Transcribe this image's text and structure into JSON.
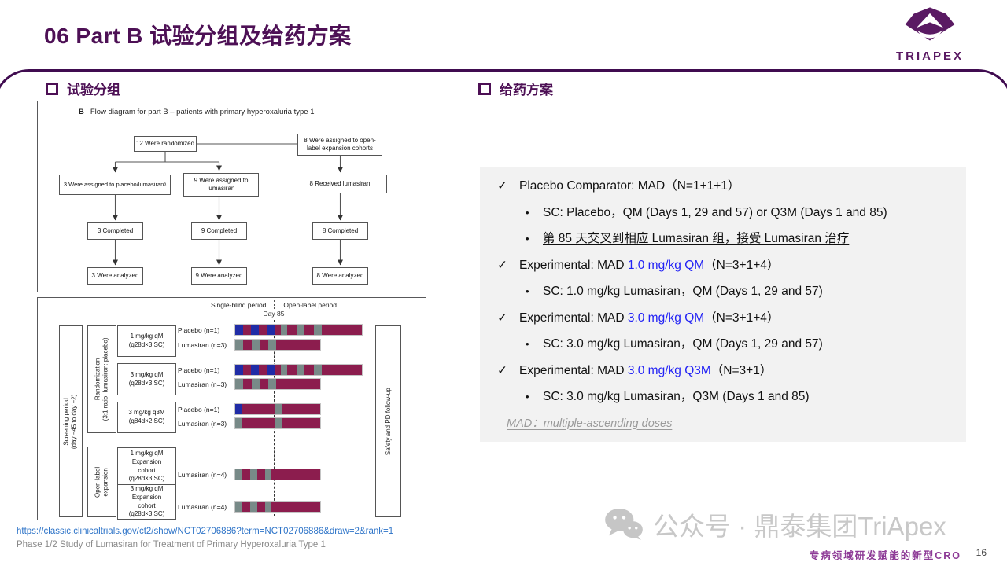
{
  "slide": {
    "title": "06 Part B 试验分组及给药方案"
  },
  "logo": {
    "text": "TRIAPEX"
  },
  "colors": {
    "brand": "#4d1055",
    "frame_line": "#400c50",
    "blue_text": "#2222f5",
    "link": "#2e74c8",
    "panel_bg": "#f2f2f2",
    "bars": {
      "blue": "#202ca6",
      "maroon": "#8c1d4e",
      "gray": "#788a88"
    }
  },
  "left": {
    "heading": "试验分组",
    "flow": {
      "title_b": "B",
      "title": "Flow diagram for part B – patients with primary hyperoxaluria type 1",
      "boxes": {
        "randomized": "12 Were randomized",
        "open_label": "8 Were assigned to open-label expansion cohorts",
        "placebo_assigned": "3 Were assigned to placebo/lumasiranᵃ",
        "lumasiran_assigned": "9 Were assigned to lumasiran",
        "received": "8 Received lumasiran",
        "completed_1": "3 Completed",
        "completed_2": "9 Completed",
        "completed_3": "8 Completed",
        "analyzed_1": "3 Were analyzed",
        "analyzed_2": "9 Were analyzed",
        "analyzed_3": "8 Were analyzed"
      }
    },
    "timeline": {
      "period_left": "Single-blind period",
      "period_right": "Open-label period",
      "day_label": "Day 85",
      "side": {
        "screening": "Screening period\n(day −45 to day −2)",
        "randomization": "Randomization\n(3:1 ratio, lumasiran: placebo)",
        "open_label": "Open-label\nexpansion",
        "followup": "Safety and PD follow-up"
      },
      "doses": [
        "1 mg/kg qM\n(q28d×3 SC)",
        "3 mg/kg qM\n(q28d×3 SC)",
        "3 mg/kg q3M\n(q84d×2 SC)",
        "1 mg/kg qM\nExpansion\ncohort\n(q28d×3 SC)",
        "3 mg/kg qM\nExpansion\ncohort\n(q28d×3 SC)"
      ],
      "rows": [
        {
          "label": "Placebo (n=1)",
          "segments": [
            [
              "blue",
              10
            ],
            [
              "maroon",
              10
            ],
            [
              "blue",
              10
            ],
            [
              "maroon",
              10
            ],
            [
              "blue",
              10
            ],
            [
              "maroon",
              8
            ],
            [
              "gray",
              8
            ],
            [
              "maroon",
              12
            ],
            [
              "gray",
              10
            ],
            [
              "maroon",
              12
            ],
            [
              "gray",
              10
            ],
            [
              "maroon",
              51
            ]
          ]
        },
        {
          "label": "Lumasiran (n=3)",
          "segments": [
            [
              "gray",
              10
            ],
            [
              "maroon",
              11
            ],
            [
              "gray",
              10
            ],
            [
              "maroon",
              11
            ],
            [
              "gray",
              10
            ],
            [
              "maroon",
              56
            ]
          ]
        },
        {
          "label": "Placebo (n=1)",
          "segments": [
            [
              "blue",
              10
            ],
            [
              "maroon",
              10
            ],
            [
              "blue",
              10
            ],
            [
              "maroon",
              10
            ],
            [
              "blue",
              10
            ],
            [
              "maroon",
              8
            ],
            [
              "gray",
              8
            ],
            [
              "maroon",
              12
            ],
            [
              "gray",
              10
            ],
            [
              "maroon",
              12
            ],
            [
              "gray",
              10
            ],
            [
              "maroon",
              51
            ]
          ]
        },
        {
          "label": "Lumasiran (n=3)",
          "segments": [
            [
              "gray",
              10
            ],
            [
              "maroon",
              11
            ],
            [
              "gray",
              10
            ],
            [
              "maroon",
              11
            ],
            [
              "gray",
              10
            ],
            [
              "maroon",
              56
            ]
          ]
        },
        {
          "label": "Placebo (n=1)",
          "segments": [
            [
              "blue",
              9
            ],
            [
              "maroon",
              42
            ],
            [
              "gray",
              9
            ],
            [
              "maroon",
              48
            ]
          ]
        },
        {
          "label": "Lumasiran (n=3)",
          "segments": [
            [
              "gray",
              9
            ],
            [
              "maroon",
              42
            ],
            [
              "gray",
              9
            ],
            [
              "maroon",
              48
            ]
          ]
        },
        {
          "label": "Lumasiran (n=4)",
          "segments": [
            [
              "gray",
              9
            ],
            [
              "maroon",
              10
            ],
            [
              "gray",
              9
            ],
            [
              "maroon",
              10
            ],
            [
              "gray",
              8
            ],
            [
              "maroon",
              62
            ]
          ]
        },
        {
          "label": "Lumasiran (n=4)",
          "segments": [
            [
              "gray",
              9
            ],
            [
              "maroon",
              10
            ],
            [
              "gray",
              9
            ],
            [
              "maroon",
              10
            ],
            [
              "gray",
              8
            ],
            [
              "maroon",
              62
            ]
          ]
        }
      ]
    },
    "source": {
      "link": "https://classic.clinicaltrials.gov/ct2/show/NCT02706886?term=NCT02706886&draw=2&rank=1",
      "caption": "Phase 1/2 Study of Lumasiran for Treatment of Primary Hyperoxaluria Type 1"
    }
  },
  "right": {
    "heading": "给药方案",
    "check_glyph": "✓",
    "bullet_glyph": "•",
    "lines": [
      {
        "pre": "Placebo Comparator: MAD（N=1+1+1）"
      },
      {
        "pre": "SC: Placebo，QM (Days 1, 29 and 57) or Q3M (Days 1 and 85)"
      },
      {
        "pre": "第 85 天交叉到相应 Lumasiran 组，接受 Lumasiran 治疗"
      },
      {
        "pre": "Experimental: MAD ",
        "hl": "1.0 mg/kg QM",
        "post": "（N=3+1+4）"
      },
      {
        "pre": "SC: 1.0 mg/kg Lumasiran，QM (Days 1, 29 and 57)"
      },
      {
        "pre": "Experimental: MAD ",
        "hl": "3.0 mg/kg QM",
        "post": "（N=3+1+4）"
      },
      {
        "pre": "SC: 3.0 mg/kg Lumasiran，QM (Days 1, 29 and 57)"
      },
      {
        "pre": "Experimental: MAD ",
        "hl": "3.0 mg/kg Q3M",
        "post": "（N=3+1）"
      },
      {
        "pre": "SC: 3.0 mg/kg Lumasiran，Q3M (Days 1 and 85)"
      },
      {
        "pre": "MAD：multiple-ascending doses"
      }
    ]
  },
  "footer": {
    "watermark": "公众号 · 鼎泰集团TriApex",
    "tagline": "专病领域研发赋能的新型CRO",
    "page": "16"
  }
}
